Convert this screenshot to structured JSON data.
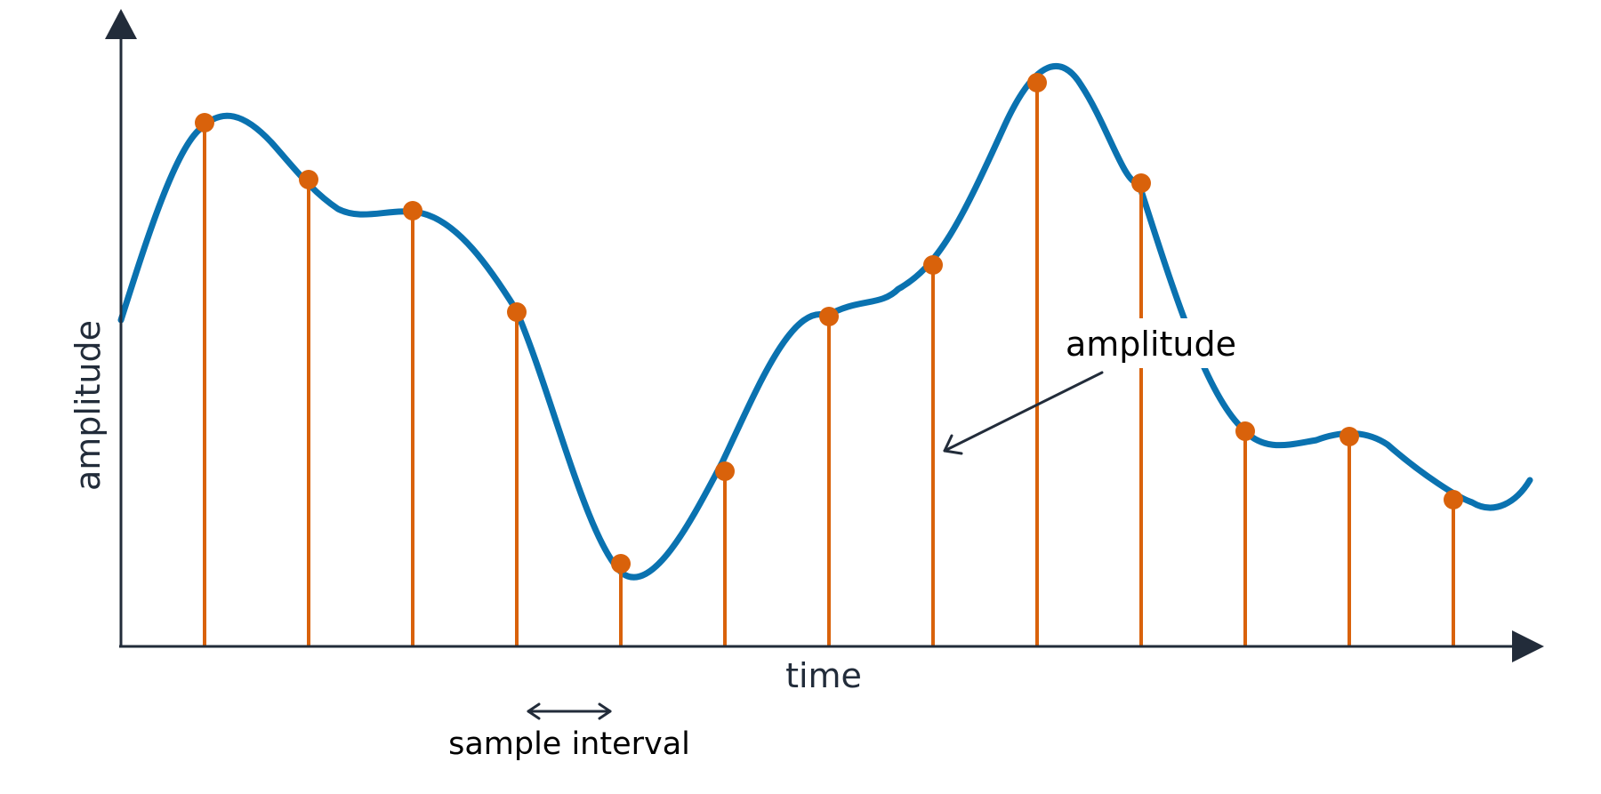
{
  "diagram": {
    "x_axis_label": "time",
    "y_axis_label": "amplitude",
    "amplitude_annotation": "amplitude",
    "interval_annotation": "sample interval",
    "colors": {
      "axis": "#222c3a",
      "signal": "#0a72b0",
      "samples": "#d9620b"
    }
  }
}
